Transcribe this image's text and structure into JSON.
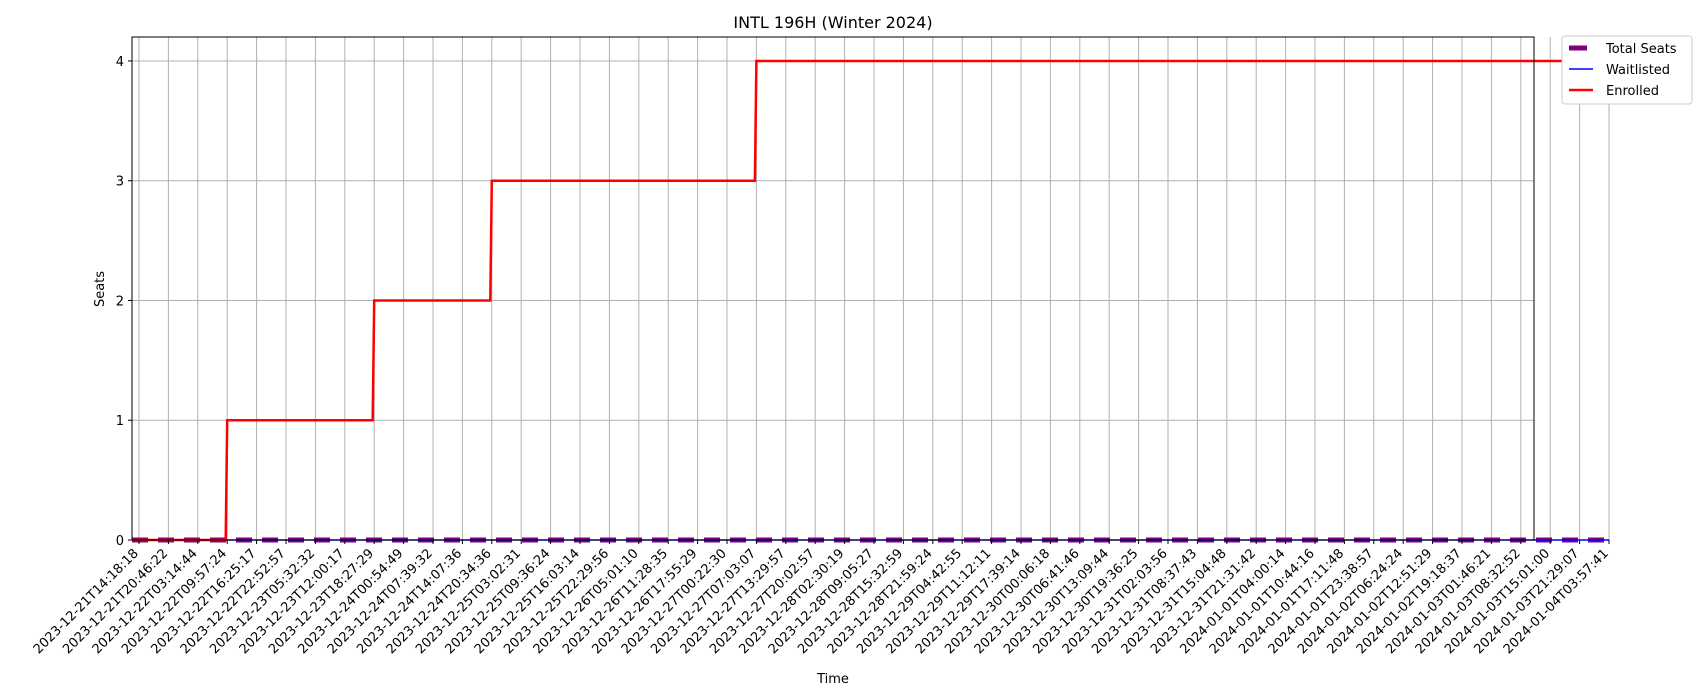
{
  "chart_data": {
    "type": "line",
    "title": "INTL 196H (Winter 2024)",
    "xlabel": "Time",
    "ylabel": "Seats",
    "ylim": [
      0,
      4.2
    ],
    "yticks": [
      0,
      1,
      2,
      3,
      4
    ],
    "grid": true,
    "legend_position": "outside-top-right",
    "x": [
      "2023-12-21T14:18:18",
      "2023-12-21T20:46:22",
      "2023-12-22T03:14:44",
      "2023-12-22T09:57:24",
      "2023-12-22T16:25:17",
      "2023-12-22T22:52:57",
      "2023-12-23T05:32:32",
      "2023-12-23T12:00:17",
      "2023-12-23T18:27:29",
      "2023-12-24T00:54:49",
      "2023-12-24T07:39:32",
      "2023-12-24T14:07:36",
      "2023-12-24T20:34:36",
      "2023-12-25T03:02:31",
      "2023-12-25T09:36:24",
      "2023-12-25T16:03:14",
      "2023-12-25T22:29:56",
      "2023-12-26T05:01:10",
      "2023-12-26T11:28:35",
      "2023-12-26T17:55:29",
      "2023-12-27T00:22:30",
      "2023-12-27T07:03:07",
      "2023-12-27T13:29:57",
      "2023-12-27T20:02:57",
      "2023-12-28T02:30:19",
      "2023-12-28T09:05:27",
      "2023-12-28T15:32:59",
      "2023-12-28T21:59:24",
      "2023-12-29T04:42:55",
      "2023-12-29T11:12:11",
      "2023-12-29T17:39:14",
      "2023-12-30T00:06:18",
      "2023-12-30T06:41:46",
      "2023-12-30T13:09:44",
      "2023-12-30T19:36:25",
      "2023-12-31T02:03:56",
      "2023-12-31T08:37:43",
      "2023-12-31T15:04:48",
      "2023-12-31T21:31:42",
      "2024-01-01T04:00:14",
      "2024-01-01T10:44:16",
      "2024-01-01T17:11:48",
      "2024-01-01T23:38:57",
      "2024-01-02T06:24:24",
      "2024-01-02T12:51:29",
      "2024-01-02T19:18:37",
      "2024-01-03T01:46:21",
      "2024-01-03T08:32:52",
      "2024-01-03T15:01:00",
      "2024-01-03T21:29:07",
      "2024-01-04T03:57:41"
    ],
    "series": [
      {
        "name": "Total Seats",
        "color": "#800080",
        "style": "dashed-thick",
        "values": [
          0,
          0,
          0,
          0,
          0,
          0,
          0,
          0,
          0,
          0,
          0,
          0,
          0,
          0,
          0,
          0,
          0,
          0,
          0,
          0,
          0,
          0,
          0,
          0,
          0,
          0,
          0,
          0,
          0,
          0,
          0,
          0,
          0,
          0,
          0,
          0,
          0,
          0,
          0,
          0,
          0,
          0,
          0,
          0,
          0,
          0,
          0,
          0,
          0,
          0,
          0
        ]
      },
      {
        "name": "Waitlisted",
        "color": "#0000ff",
        "style": "solid-thin",
        "values": [
          0,
          0,
          0,
          0,
          0,
          0,
          0,
          0,
          0,
          0,
          0,
          0,
          0,
          0,
          0,
          0,
          0,
          0,
          0,
          0,
          0,
          0,
          0,
          0,
          0,
          0,
          0,
          0,
          0,
          0,
          0,
          0,
          0,
          0,
          0,
          0,
          0,
          0,
          0,
          0,
          0,
          0,
          0,
          0,
          0,
          0,
          0,
          0,
          0,
          0,
          0
        ]
      },
      {
        "name": "Enrolled",
        "color": "#ff0000",
        "style": "solid-thick",
        "values": [
          0,
          0,
          0,
          1,
          1,
          1,
          1,
          1,
          2,
          2,
          2,
          2,
          3,
          3,
          3,
          3,
          3,
          3,
          3,
          3,
          3,
          4,
          4,
          4,
          4,
          4,
          4,
          4,
          4,
          4,
          4,
          4,
          4,
          4,
          4,
          4,
          4,
          4,
          4,
          4,
          4,
          4,
          4,
          4,
          4,
          4,
          4,
          4,
          4,
          4,
          4
        ]
      }
    ]
  }
}
